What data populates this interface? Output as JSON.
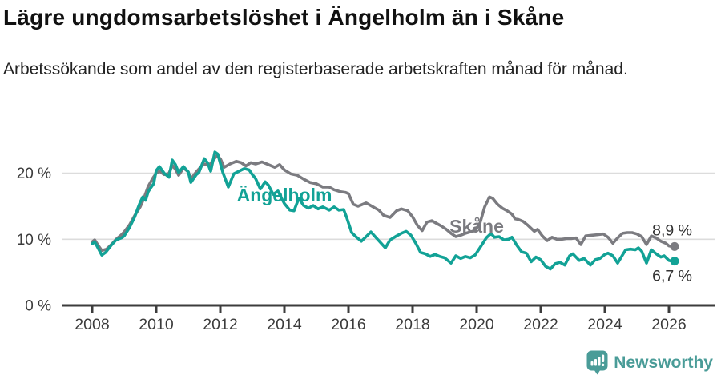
{
  "header": {
    "title": "Lägre ungdomsarbetslöshet i Ängelholm än i Skåne",
    "subtitle": "Arbetssökande som andel av den registerbaserade arbetskraften månad för månad."
  },
  "footer": {
    "brand": "Newsworthy"
  },
  "colors": {
    "angelholm": "#12A296",
    "skane": "#7B7B80",
    "grid": "#DCDCDC",
    "axis": "#3C3C3C",
    "tick_text": "#3C3C3C",
    "end_label_text": "#333333",
    "logo": "#4A9C98"
  },
  "chart_data": {
    "type": "line",
    "xlabel": "",
    "ylabel": "",
    "x_range": [
      2008,
      2026.1
    ],
    "ylim": [
      0,
      24
    ],
    "grid": "horizontal",
    "legend_position": "inline-annotations",
    "y_ticks": [
      {
        "label": "20 %",
        "value": 20
      },
      {
        "label": "10 %",
        "value": 10
      },
      {
        "label": "0 %",
        "value": 0
      }
    ],
    "x_ticks": [
      "2008",
      "2010",
      "2012",
      "2014",
      "2016",
      "2018",
      "2020",
      "2022",
      "2024",
      "2026"
    ],
    "annotations": [
      {
        "label": "Ängelholm",
        "year": 2014.0,
        "value": 16.7,
        "series": "angelholm"
      },
      {
        "label": "Skåne",
        "year": 2020.0,
        "value": 12.0,
        "series": "skane"
      }
    ],
    "series": [
      {
        "name": "Skåne",
        "color_key": "skane",
        "end_label": "8,9 %",
        "end_label_position": "above",
        "points": [
          [
            2008.0,
            9.6
          ],
          [
            2008.08,
            9.9
          ],
          [
            2008.2,
            9.0
          ],
          [
            2008.3,
            8.3
          ],
          [
            2008.45,
            8.5
          ],
          [
            2008.6,
            9.2
          ],
          [
            2008.75,
            10.0
          ],
          [
            2008.9,
            10.6
          ],
          [
            2009.0,
            11.1
          ],
          [
            2009.17,
            12.2
          ],
          [
            2009.33,
            13.6
          ],
          [
            2009.5,
            14.9
          ],
          [
            2009.6,
            16.0
          ],
          [
            2009.75,
            18.0
          ],
          [
            2009.9,
            19.3
          ],
          [
            2010.0,
            20.0
          ],
          [
            2010.1,
            20.3
          ],
          [
            2010.25,
            19.8
          ],
          [
            2010.4,
            20.0
          ],
          [
            2010.5,
            21.2
          ],
          [
            2010.6,
            20.6
          ],
          [
            2010.7,
            19.7
          ],
          [
            2010.85,
            20.8
          ],
          [
            2011.0,
            20.2
          ],
          [
            2011.08,
            19.1
          ],
          [
            2011.25,
            20.2
          ],
          [
            2011.4,
            21.0
          ],
          [
            2011.5,
            21.4
          ],
          [
            2011.65,
            21.2
          ],
          [
            2011.88,
            22.6
          ],
          [
            2012.0,
            22.2
          ],
          [
            2012.12,
            20.9
          ],
          [
            2012.3,
            21.4
          ],
          [
            2012.5,
            21.8
          ],
          [
            2012.65,
            21.6
          ],
          [
            2012.8,
            21.1
          ],
          [
            2012.95,
            21.6
          ],
          [
            2013.1,
            21.4
          ],
          [
            2013.3,
            21.7
          ],
          [
            2013.5,
            21.3
          ],
          [
            2013.7,
            20.9
          ],
          [
            2013.85,
            21.3
          ],
          [
            2014.0,
            20.5
          ],
          [
            2014.2,
            19.9
          ],
          [
            2014.4,
            19.7
          ],
          [
            2014.6,
            19.1
          ],
          [
            2014.8,
            18.6
          ],
          [
            2015.0,
            18.4
          ],
          [
            2015.2,
            17.9
          ],
          [
            2015.4,
            17.9
          ],
          [
            2015.55,
            17.5
          ],
          [
            2015.75,
            17.2
          ],
          [
            2015.9,
            17.1
          ],
          [
            2016.0,
            16.9
          ],
          [
            2016.15,
            15.3
          ],
          [
            2016.3,
            15.0
          ],
          [
            2016.55,
            15.5
          ],
          [
            2016.8,
            14.8
          ],
          [
            2016.95,
            14.4
          ],
          [
            2017.1,
            13.6
          ],
          [
            2017.3,
            13.3
          ],
          [
            2017.5,
            14.3
          ],
          [
            2017.65,
            14.6
          ],
          [
            2017.85,
            14.3
          ],
          [
            2018.0,
            13.4
          ],
          [
            2018.15,
            12.1
          ],
          [
            2018.3,
            11.3
          ],
          [
            2018.45,
            12.6
          ],
          [
            2018.6,
            12.8
          ],
          [
            2018.75,
            12.4
          ],
          [
            2018.9,
            12.0
          ],
          [
            2019.05,
            11.5
          ],
          [
            2019.2,
            10.9
          ],
          [
            2019.35,
            10.4
          ],
          [
            2019.5,
            10.6
          ],
          [
            2019.65,
            10.9
          ],
          [
            2019.8,
            11.1
          ],
          [
            2019.95,
            11.3
          ],
          [
            2020.1,
            12.4
          ],
          [
            2020.25,
            14.9
          ],
          [
            2020.4,
            16.4
          ],
          [
            2020.5,
            16.2
          ],
          [
            2020.65,
            15.3
          ],
          [
            2020.8,
            14.7
          ],
          [
            2020.95,
            14.3
          ],
          [
            2021.1,
            13.8
          ],
          [
            2021.2,
            13.1
          ],
          [
            2021.3,
            13.0
          ],
          [
            2021.45,
            12.7
          ],
          [
            2021.6,
            12.1
          ],
          [
            2021.8,
            11.2
          ],
          [
            2021.9,
            11.5
          ],
          [
            2022.05,
            10.5
          ],
          [
            2022.2,
            9.8
          ],
          [
            2022.35,
            10.3
          ],
          [
            2022.5,
            10.0
          ],
          [
            2022.65,
            10.0
          ],
          [
            2022.8,
            10.1
          ],
          [
            2022.95,
            10.1
          ],
          [
            2023.1,
            10.2
          ],
          [
            2023.25,
            9.2
          ],
          [
            2023.4,
            10.5
          ],
          [
            2023.6,
            10.6
          ],
          [
            2023.8,
            10.7
          ],
          [
            2023.95,
            10.8
          ],
          [
            2024.1,
            10.3
          ],
          [
            2024.25,
            9.4
          ],
          [
            2024.4,
            10.2
          ],
          [
            2024.55,
            10.9
          ],
          [
            2024.7,
            11.0
          ],
          [
            2024.85,
            11.0
          ],
          [
            2025.0,
            10.8
          ],
          [
            2025.15,
            10.4
          ],
          [
            2025.3,
            9.2
          ],
          [
            2025.45,
            10.5
          ],
          [
            2025.6,
            10.2
          ],
          [
            2025.75,
            9.7
          ],
          [
            2025.9,
            9.4
          ],
          [
            2026.0,
            9.0
          ],
          [
            2026.1,
            8.9
          ]
        ]
      },
      {
        "name": "Ängelholm",
        "color_key": "angelholm",
        "end_label": "6,7 %",
        "end_label_position": "below",
        "points": [
          [
            2008.0,
            9.3
          ],
          [
            2008.08,
            9.6
          ],
          [
            2008.17,
            8.8
          ],
          [
            2008.3,
            7.6
          ],
          [
            2008.42,
            8.0
          ],
          [
            2008.58,
            9.0
          ],
          [
            2008.75,
            9.9
          ],
          [
            2008.92,
            10.2
          ],
          [
            2009.0,
            10.5
          ],
          [
            2009.17,
            11.8
          ],
          [
            2009.33,
            13.4
          ],
          [
            2009.42,
            14.6
          ],
          [
            2009.5,
            15.6
          ],
          [
            2009.58,
            16.4
          ],
          [
            2009.67,
            15.9
          ],
          [
            2009.75,
            17.2
          ],
          [
            2009.83,
            17.8
          ],
          [
            2009.92,
            18.4
          ],
          [
            2010.0,
            20.4
          ],
          [
            2010.1,
            21.0
          ],
          [
            2010.25,
            20.0
          ],
          [
            2010.4,
            19.4
          ],
          [
            2010.5,
            22.0
          ],
          [
            2010.6,
            21.3
          ],
          [
            2010.7,
            20.1
          ],
          [
            2010.85,
            21.0
          ],
          [
            2011.0,
            20.2
          ],
          [
            2011.08,
            18.6
          ],
          [
            2011.25,
            19.8
          ],
          [
            2011.33,
            20.1
          ],
          [
            2011.5,
            22.2
          ],
          [
            2011.6,
            21.6
          ],
          [
            2011.7,
            20.3
          ],
          [
            2011.83,
            23.2
          ],
          [
            2011.92,
            22.9
          ],
          [
            2012.08,
            20.1
          ],
          [
            2012.25,
            17.9
          ],
          [
            2012.42,
            19.9
          ],
          [
            2012.58,
            20.3
          ],
          [
            2012.75,
            20.7
          ],
          [
            2012.9,
            20.5
          ],
          [
            2013.0,
            19.8
          ],
          [
            2013.1,
            19.2
          ],
          [
            2013.25,
            17.6
          ],
          [
            2013.4,
            18.7
          ],
          [
            2013.5,
            18.2
          ],
          [
            2013.65,
            16.8
          ],
          [
            2013.8,
            17.3
          ],
          [
            2013.9,
            16.3
          ],
          [
            2014.0,
            15.4
          ],
          [
            2014.17,
            14.4
          ],
          [
            2014.3,
            14.3
          ],
          [
            2014.45,
            16.2
          ],
          [
            2014.6,
            15.1
          ],
          [
            2014.75,
            14.7
          ],
          [
            2014.9,
            15.1
          ],
          [
            2015.05,
            14.6
          ],
          [
            2015.2,
            14.9
          ],
          [
            2015.4,
            14.4
          ],
          [
            2015.55,
            14.9
          ],
          [
            2015.7,
            14.4
          ],
          [
            2015.85,
            14.5
          ],
          [
            2015.95,
            13.2
          ],
          [
            2016.1,
            11.0
          ],
          [
            2016.25,
            10.3
          ],
          [
            2016.4,
            9.7
          ],
          [
            2016.55,
            10.4
          ],
          [
            2016.7,
            11.1
          ],
          [
            2016.85,
            10.3
          ],
          [
            2017.0,
            9.5
          ],
          [
            2017.15,
            8.7
          ],
          [
            2017.3,
            9.9
          ],
          [
            2017.5,
            10.5
          ],
          [
            2017.65,
            10.9
          ],
          [
            2017.8,
            11.2
          ],
          [
            2017.95,
            10.6
          ],
          [
            2018.1,
            9.4
          ],
          [
            2018.25,
            8.0
          ],
          [
            2018.4,
            7.8
          ],
          [
            2018.55,
            7.4
          ],
          [
            2018.7,
            7.7
          ],
          [
            2018.85,
            7.4
          ],
          [
            2019.0,
            7.2
          ],
          [
            2019.2,
            6.4
          ],
          [
            2019.35,
            7.5
          ],
          [
            2019.5,
            7.1
          ],
          [
            2019.65,
            7.4
          ],
          [
            2019.8,
            7.2
          ],
          [
            2019.95,
            7.6
          ],
          [
            2020.1,
            8.7
          ],
          [
            2020.3,
            10.2
          ],
          [
            2020.45,
            10.9
          ],
          [
            2020.55,
            10.3
          ],
          [
            2020.7,
            10.4
          ],
          [
            2020.85,
            9.9
          ],
          [
            2021.0,
            10.0
          ],
          [
            2021.1,
            10.3
          ],
          [
            2021.25,
            9.1
          ],
          [
            2021.4,
            8.1
          ],
          [
            2021.55,
            7.9
          ],
          [
            2021.7,
            6.6
          ],
          [
            2021.85,
            7.3
          ],
          [
            2022.0,
            6.9
          ],
          [
            2022.15,
            5.9
          ],
          [
            2022.3,
            5.5
          ],
          [
            2022.45,
            6.3
          ],
          [
            2022.6,
            6.5
          ],
          [
            2022.75,
            6.1
          ],
          [
            2022.9,
            7.5
          ],
          [
            2023.0,
            7.8
          ],
          [
            2023.2,
            6.8
          ],
          [
            2023.35,
            7.1
          ],
          [
            2023.55,
            6.1
          ],
          [
            2023.7,
            6.9
          ],
          [
            2023.85,
            7.1
          ],
          [
            2024.0,
            7.7
          ],
          [
            2024.1,
            7.9
          ],
          [
            2024.25,
            7.5
          ],
          [
            2024.4,
            6.4
          ],
          [
            2024.55,
            7.6
          ],
          [
            2024.65,
            8.4
          ],
          [
            2024.8,
            8.5
          ],
          [
            2024.95,
            8.4
          ],
          [
            2025.05,
            8.7
          ],
          [
            2025.15,
            8.2
          ],
          [
            2025.3,
            6.4
          ],
          [
            2025.45,
            8.4
          ],
          [
            2025.6,
            7.8
          ],
          [
            2025.75,
            7.3
          ],
          [
            2025.85,
            7.5
          ],
          [
            2026.0,
            6.8
          ],
          [
            2026.1,
            6.7
          ]
        ]
      }
    ]
  }
}
